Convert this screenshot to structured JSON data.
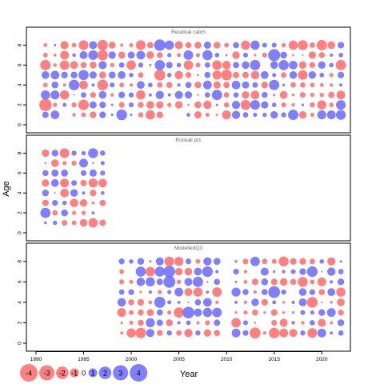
{
  "chart_data": {
    "type": "scatter",
    "subtype": "bubble-residuals",
    "x_label": "Year",
    "y_label": "Age",
    "x_range": [
      1989,
      2023
    ],
    "y_range": [
      0,
      9
    ],
    "x_ticks": [
      "1990",
      "1995",
      "2000",
      "2005",
      "2010",
      "2015",
      "2020"
    ],
    "y_ticks": [
      "0",
      "2",
      "4",
      "6",
      "8"
    ],
    "colors": {
      "positive": "#6a6aff",
      "negative": "#ff6a6a",
      "frame": "#000000",
      "panel_title": "#666666"
    },
    "legend": {
      "values": [
        -4,
        -3,
        -2,
        -1,
        0,
        1,
        2,
        3,
        4
      ],
      "labels": [
        "-4",
        "-3",
        "-2",
        "-1",
        "0",
        "1",
        "2",
        "3",
        "4"
      ]
    },
    "panels": [
      {
        "title": "Residual catch",
        "year_start": 1991,
        "year_end": 2022
      },
      {
        "title": "Rockall pt1",
        "year_start": 1991,
        "year_end": 1997
      },
      {
        "title": "ModelledQ3",
        "year_start": 1999,
        "year_end": 2022,
        "gap_years": [
          2010
        ]
      }
    ]
  }
}
